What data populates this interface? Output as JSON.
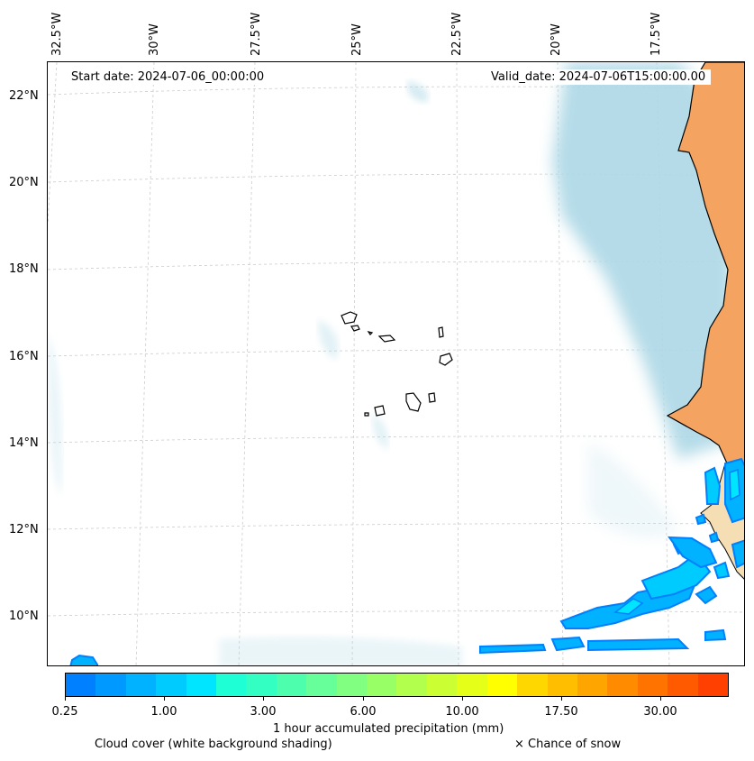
{
  "map": {
    "start_date": "Start date: 2024-07-06_00:00:00",
    "valid_date": "Valid_date: 2024-07-06T15:00:00.00",
    "lon_labels": [
      "32.5°W",
      "30°W",
      "27.5°W",
      "25°W",
      "22.5°W",
      "20°W",
      "17.5°W"
    ],
    "lat_labels": [
      "22°N",
      "20°N",
      "18°N",
      "16°N",
      "14°N",
      "12°N",
      "10°N"
    ],
    "land_color": "#f4a460",
    "cloud_color": "#add8e6",
    "coastline_color": "#000000"
  },
  "colorbar": {
    "colors": [
      "#0080ff",
      "#0099ff",
      "#00b2ff",
      "#00cbff",
      "#00e5ff",
      "#1effd6",
      "#33ffc2",
      "#4dffad",
      "#66ff99",
      "#80ff80",
      "#99ff66",
      "#b3ff4d",
      "#ccff33",
      "#e6ff19",
      "#ffff00",
      "#ffd700",
      "#ffbf00",
      "#ffa500",
      "#ff8c00",
      "#ff7300",
      "#ff5a00",
      "#ff4000"
    ],
    "tick_labels": [
      "0.25",
      "1.00",
      "3.00",
      "6.00",
      "10.00",
      "17.50",
      "30.00"
    ],
    "label": "1 hour accumulated precipitation (mm)"
  },
  "legend": {
    "cloud_cover": "Cloud cover (white background shading)",
    "snow": "× Chance of snow"
  }
}
